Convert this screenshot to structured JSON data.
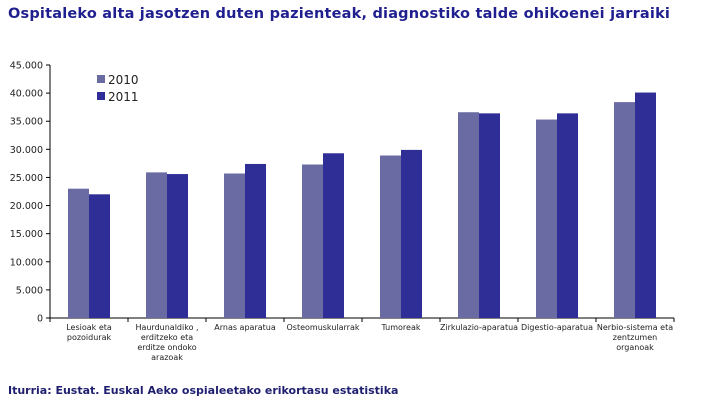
{
  "title": "Ospitaleko alta jasotzen duten pazienteak, diagnostiko talde ohikoenei jarraiki",
  "source": "Iturria: Eustat. Euskal Aeko ospialeetako erikortasu estatistika",
  "chart_data": {
    "type": "bar",
    "title": "Ospitaleko alta jasotzen duten pazienteak, diagnostiko talde ohikoenei jarraiki",
    "xlabel": "",
    "ylabel": "",
    "ylim": [
      0,
      45000
    ],
    "yticks": [
      0,
      5000,
      10000,
      15000,
      20000,
      25000,
      30000,
      35000,
      40000,
      45000
    ],
    "ytick_labels": [
      "0",
      "5.000",
      "10.000",
      "15.000",
      "20.000",
      "25.000",
      "30.000",
      "35.000",
      "40.000",
      "45.000"
    ],
    "categories": [
      [
        "Lesioak eta",
        "pozoidurak"
      ],
      [
        "Haurdunaldiko ,",
        "erditzeko eta",
        "erditze ondoko",
        "arazoak"
      ],
      [
        "Arnas aparatua"
      ],
      [
        "Osteomuskularrak"
      ],
      [
        "Tumoreak"
      ],
      [
        "Zirkulazio-aparatua"
      ],
      [
        "Digestio-aparatua"
      ],
      [
        "Nerbio-sistema eta",
        "zentzumen",
        "organoak"
      ]
    ],
    "series": [
      {
        "name": "2010",
        "color": "#6b6ba3",
        "values": [
          23000,
          25900,
          25700,
          27300,
          28900,
          36600,
          35300,
          38400
        ]
      },
      {
        "name": "2011",
        "color": "#2e2e96",
        "values": [
          22000,
          25600,
          27400,
          29300,
          29900,
          36400,
          36400,
          40100
        ]
      }
    ],
    "legend": "top-left",
    "grid": false
  }
}
